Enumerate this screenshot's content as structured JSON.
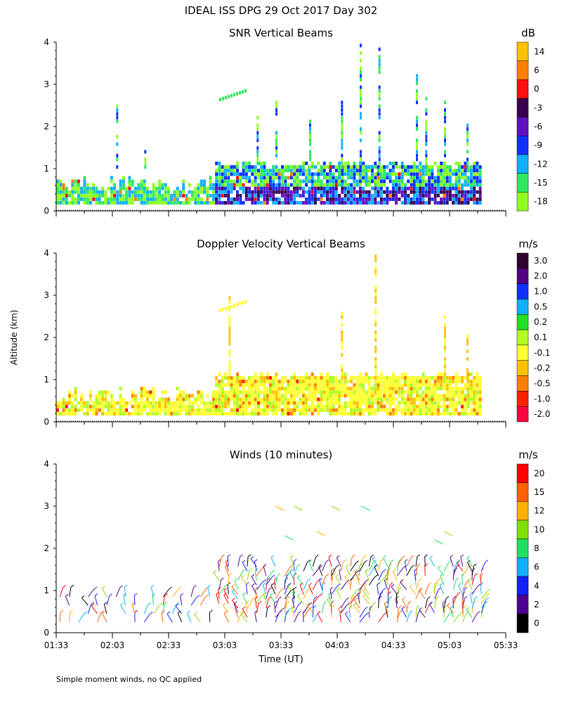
{
  "title": "IDEAL ISS DPG  29 Oct 2017 Day 302",
  "ylabel": "Altitude (km)",
  "xlabel": "Time (UT)",
  "footnote": "Simple moment winds, no QC applied",
  "x_ticks": [
    "01:33",
    "02:03",
    "02:33",
    "03:03",
    "03:33",
    "04:03",
    "04:33",
    "05:03",
    "05:33"
  ],
  "y_ticks": [
    "0",
    "1",
    "2",
    "3",
    "4"
  ],
  "chart_data": [
    {
      "type": "heatmap",
      "title": "SNR Vertical Beams",
      "xlabel": "Time (UT)",
      "ylabel": "Altitude (km)",
      "xlim": [
        "01:33",
        "05:33"
      ],
      "ylim": [
        0,
        4
      ],
      "colorbar": {
        "unit": "dB",
        "labels": [
          "14",
          "6",
          "0",
          "-3",
          "-6",
          "-9",
          "-12",
          "-15",
          "-18"
        ],
        "colors": [
          "#ffc000",
          "#ff8000",
          "#ff1010",
          "#3a0050",
          "#6010c0",
          "#1030ff",
          "#10b0ff",
          "#30e860",
          "#90ff20"
        ]
      },
      "data_extent": {
        "time_start": "01:33",
        "time_end": "05:20",
        "altitude_min_km": 0.15,
        "altitude_max_km": 4.0
      }
    },
    {
      "type": "heatmap",
      "title": "Doppler Velocity Vertical Beams",
      "xlabel": "Time (UT)",
      "ylabel": "Altitude (km)",
      "xlim": [
        "01:33",
        "05:33"
      ],
      "ylim": [
        0,
        4
      ],
      "colorbar": {
        "unit": "m/s",
        "labels": [
          "3.0",
          "2.0",
          "1.0",
          "0.5",
          "0.2",
          "0.1",
          "-0.1",
          "-0.2",
          "-0.5",
          "-1.0",
          "-2.0"
        ],
        "colors": [
          "#300030",
          "#500080",
          "#1030ff",
          "#10b0ff",
          "#20e020",
          "#b0ff20",
          "#ffff30",
          "#ffc000",
          "#ff8000",
          "#ff2000",
          "#ff0040"
        ]
      },
      "data_extent": {
        "time_start": "01:33",
        "time_end": "05:20",
        "altitude_min_km": 0.15,
        "altitude_max_km": 4.0
      }
    },
    {
      "type": "scatter",
      "title": "Winds (10 minutes)",
      "xlabel": "Time (UT)",
      "ylabel": "Altitude (km)",
      "xlim": [
        "01:33",
        "05:33"
      ],
      "ylim": [
        0,
        4
      ],
      "colorbar": {
        "unit": "m/s",
        "labels": [
          "20",
          "15",
          "12",
          "10",
          "8",
          "6",
          "4",
          "2",
          "0"
        ],
        "colors": [
          "#ff0000",
          "#ff6000",
          "#ffb000",
          "#80e000",
          "#20e060",
          "#10b0ff",
          "#1020ff",
          "#500090",
          "#000000"
        ]
      },
      "data_extent": {
        "time_start": "01:33",
        "time_end": "05:20",
        "altitude_min_km": 0.2,
        "altitude_max_km": 3.1
      }
    }
  ]
}
